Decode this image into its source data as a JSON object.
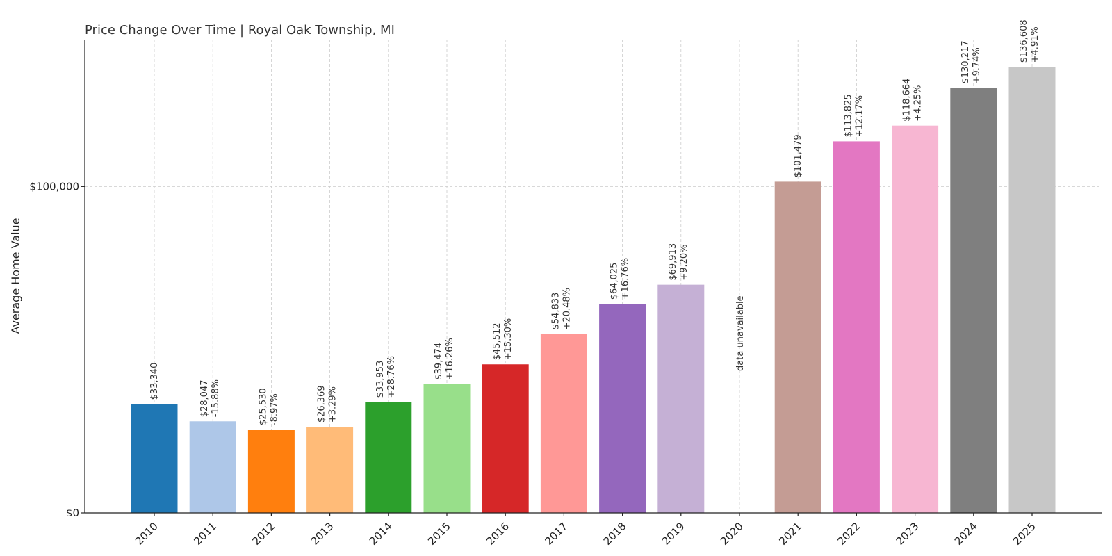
{
  "chart_data": {
    "type": "bar",
    "title": "Price Change Over Time | Royal Oak Township, MI",
    "xlabel": "",
    "ylabel": "Average Home Value",
    "ylim": [
      0,
      145000
    ],
    "yticks": [
      0,
      100000
    ],
    "ytick_labels": [
      "$0",
      "$100,000"
    ],
    "grid": true,
    "categories": [
      "2010",
      "2011",
      "2012",
      "2013",
      "2014",
      "2015",
      "2016",
      "2017",
      "2018",
      "2019",
      "2020",
      "2021",
      "2022",
      "2023",
      "2024",
      "2025"
    ],
    "values": [
      33340,
      28047,
      25530,
      26369,
      33953,
      39474,
      45512,
      54833,
      64025,
      69913,
      null,
      101479,
      113825,
      118664,
      130217,
      136608
    ],
    "value_labels": [
      "$33,340",
      "$28,047",
      "$25,530",
      "$26,369",
      "$33,953",
      "$39,474",
      "$45,512",
      "$54,833",
      "$64,025",
      "$69,913",
      "",
      "$101,479",
      "$113,825",
      "$118,664",
      "$130,217",
      "$136,608"
    ],
    "change_labels": [
      "",
      "-15.88%",
      "-8.97%",
      "+3.29%",
      "+28.76%",
      "+16.26%",
      "+15.30%",
      "+20.48%",
      "+16.76%",
      "+9.20%",
      "",
      "",
      "+12.17%",
      "+4.25%",
      "+9.74%",
      "+4.91%"
    ],
    "missing_label": "data unavailable",
    "colors": [
      "#1f77b4",
      "#aec7e8",
      "#ff7f0e",
      "#ffbb78",
      "#2ca02c",
      "#98df8a",
      "#d62728",
      "#ff9896",
      "#9467bd",
      "#c5b0d5",
      "#8c564b",
      "#c49c94",
      "#e377c2",
      "#f7b6d2",
      "#7f7f7f",
      "#c7c7c7"
    ]
  }
}
